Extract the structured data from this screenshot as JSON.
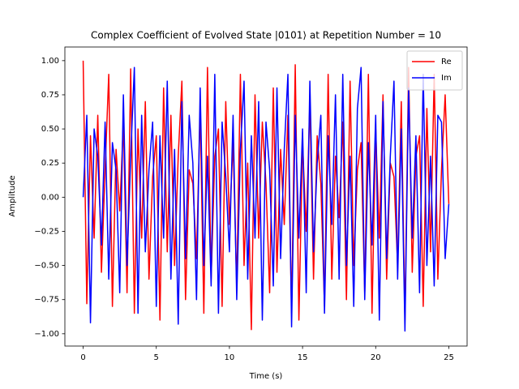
{
  "chart_data": {
    "type": "line",
    "title": "Complex Coefficient of Evolved State |0101⟩ at Repetition Number = 10",
    "x_label": "Time (s)",
    "y_label": "Amplitude",
    "x": [
      0,
      0.25,
      0.5,
      0.75,
      1,
      1.25,
      1.5,
      1.75,
      2,
      2.25,
      2.5,
      2.75,
      3,
      3.25,
      3.5,
      3.75,
      4,
      4.25,
      4.5,
      4.75,
      5,
      5.25,
      5.5,
      5.75,
      6,
      6.25,
      6.5,
      6.75,
      7,
      7.25,
      7.5,
      7.75,
      8,
      8.25,
      8.5,
      8.75,
      9,
      9.25,
      9.5,
      9.75,
      10,
      10.25,
      10.5,
      10.75,
      11,
      11.25,
      11.5,
      11.75,
      12,
      12.25,
      12.5,
      12.75,
      13,
      13.25,
      13.5,
      13.75,
      14,
      14.25,
      14.5,
      14.75,
      15,
      15.25,
      15.5,
      15.75,
      16,
      16.25,
      16.5,
      16.75,
      17,
      17.25,
      17.5,
      17.75,
      18,
      18.25,
      18.5,
      18.75,
      19,
      19.25,
      19.5,
      19.75,
      20,
      20.25,
      20.5,
      20.75,
      21,
      21.25,
      21.5,
      21.75,
      22,
      22.25,
      22.5,
      22.75,
      23,
      23.25,
      23.5,
      23.75,
      24,
      24.25,
      24.5,
      24.75,
      25
    ],
    "series": [
      {
        "name": "Re",
        "color": "#ff0000",
        "values": [
          1.0,
          -0.78,
          0.45,
          -0.3,
          0.6,
          -0.55,
          0.2,
          0.9,
          -0.8,
          0.35,
          -0.1,
          0.55,
          -0.7,
          0.94,
          -0.85,
          0.5,
          -0.3,
          0.7,
          -0.6,
          0.15,
          0.45,
          -0.9,
          0.8,
          -0.4,
          0.6,
          -0.5,
          0.3,
          0.85,
          -0.75,
          0.2,
          0.1,
          -0.45,
          0.65,
          -0.85,
          0.95,
          -0.6,
          0.3,
          0.5,
          -0.8,
          0.7,
          -0.2,
          0.4,
          -0.65,
          0.9,
          -0.5,
          0.25,
          -0.97,
          0.75,
          -0.3,
          0.55,
          0.1,
          -0.7,
          0.8,
          -0.55,
          0.35,
          -0.2,
          0.6,
          -0.85,
          0.97,
          -0.9,
          0.4,
          -0.25,
          0.7,
          -0.6,
          0.45,
          0.1,
          -0.8,
          0.9,
          -0.6,
          0.3,
          -0.15,
          0.55,
          -0.75,
          0.85,
          -0.5,
          0.2,
          0.4,
          -0.7,
          0.9,
          -0.85,
          0.5,
          -0.3,
          0.75,
          -0.6,
          0.25,
          0.15,
          -0.5,
          0.7,
          -0.9,
          0.95,
          -0.55,
          0.3,
          0.45,
          -0.8,
          0.65,
          -0.4,
          0.9,
          -0.6,
          0.2,
          0.75,
          -0.05
        ]
      },
      {
        "name": "Im",
        "color": "#0000ff",
        "values": [
          0.0,
          0.6,
          -0.92,
          0.5,
          0.3,
          -0.35,
          0.55,
          -0.6,
          0.4,
          0.2,
          -0.7,
          0.75,
          -0.5,
          0.3,
          0.95,
          -0.85,
          0.6,
          -0.4,
          0.2,
          0.55,
          -0.8,
          0.45,
          -0.3,
          0.85,
          -0.6,
          0.35,
          -0.93,
          0.7,
          -0.45,
          0.6,
          0.25,
          -0.75,
          0.8,
          -0.5,
          0.3,
          -0.65,
          0.9,
          -0.85,
          0.55,
          0.15,
          -0.4,
          0.6,
          -0.75,
          0.35,
          0.85,
          -0.6,
          0.45,
          -0.3,
          0.7,
          -0.9,
          0.55,
          0.2,
          -0.65,
          0.8,
          -0.45,
          0.35,
          0.9,
          -0.95,
          0.6,
          -0.3,
          0.5,
          -0.7,
          0.85,
          -0.4,
          0.25,
          0.6,
          -0.85,
          0.45,
          -0.2,
          0.75,
          -0.6,
          0.9,
          -0.5,
          0.3,
          -0.8,
          0.65,
          0.95,
          -0.75,
          0.4,
          -0.35,
          0.6,
          -0.9,
          0.7,
          -0.45,
          0.3,
          0.85,
          -0.6,
          0.5,
          -0.98,
          0.8,
          -0.3,
          0.45,
          -0.7,
          0.9,
          -0.5,
          0.3,
          -0.65,
          0.6,
          0.55,
          -0.45,
          -0.05
        ]
      }
    ],
    "xlim": [
      -1.25,
      26.25
    ],
    "xticks": [
      0,
      5,
      10,
      15,
      20,
      25
    ],
    "ylim": [
      -1.09,
      1.1
    ],
    "yticks": [
      {
        "value": -1,
        "label": "−1.00"
      },
      {
        "value": -0.75,
        "label": "−0.75"
      },
      {
        "value": -0.5,
        "label": "−0.50"
      },
      {
        "value": -0.25,
        "label": "−0.25"
      },
      {
        "value": 0,
        "label": "0.00"
      },
      {
        "value": 0.25,
        "label": "0.25"
      },
      {
        "value": 0.5,
        "label": "0.50"
      },
      {
        "value": 0.75,
        "label": "0.75"
      },
      {
        "value": 1,
        "label": "1.00"
      }
    ],
    "grid": false,
    "legend": "upper right"
  }
}
